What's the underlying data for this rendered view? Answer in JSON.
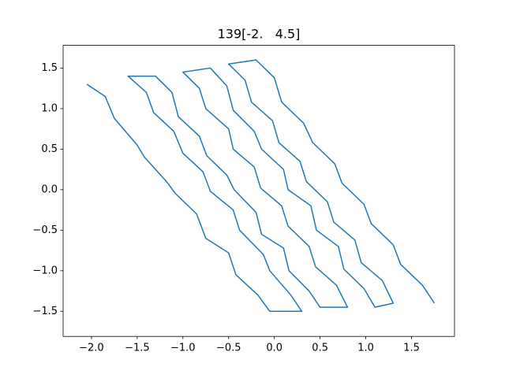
{
  "chart_data": {
    "type": "line",
    "title": "139[-2.   4.5]",
    "x": [
      -2.05,
      -1.85,
      -1.75,
      -1.5,
      -1.42,
      -1.18,
      -1.08,
      -0.85,
      -0.75,
      -0.5,
      -0.42,
      -0.18,
      -0.05,
      0.3,
      0.18,
      -0.05,
      -0.12,
      -0.38,
      -0.45,
      -0.7,
      -0.78,
      -1.0,
      -1.1,
      -1.32,
      -1.4,
      -1.6,
      -1.3,
      -1.12,
      -1.05,
      -0.82,
      -0.74,
      -0.52,
      -0.44,
      -0.2,
      -0.14,
      0.1,
      0.16,
      0.38,
      0.5,
      0.8,
      0.68,
      0.45,
      0.38,
      0.15,
      0.08,
      -0.15,
      -0.22,
      -0.45,
      -0.5,
      -0.75,
      -0.82,
      -1.0,
      -0.7,
      -0.52,
      -0.45,
      -0.22,
      -0.14,
      0.1,
      0.15,
      0.4,
      0.46,
      0.7,
      0.76,
      0.98,
      1.1,
      1.3,
      1.18,
      0.95,
      0.88,
      0.65,
      0.58,
      0.35,
      0.28,
      0.05,
      -0.02,
      -0.25,
      -0.32,
      -0.5,
      -0.2,
      0.0,
      0.08,
      0.32,
      0.42,
      0.66,
      0.74,
      0.98,
      1.06,
      1.3,
      1.38,
      1.62,
      1.75
    ],
    "series": [
      {
        "color": "#1f77b4",
        "values": [
          1.3,
          1.15,
          0.88,
          0.55,
          0.4,
          0.1,
          -0.05,
          -0.3,
          -0.6,
          -0.78,
          -1.05,
          -1.3,
          -1.5,
          -1.5,
          -1.3,
          -1.0,
          -0.8,
          -0.5,
          -0.25,
          -0.02,
          0.22,
          0.45,
          0.72,
          0.95,
          1.2,
          1.4,
          1.4,
          1.2,
          0.9,
          0.66,
          0.42,
          0.18,
          0.0,
          -0.28,
          -0.55,
          -0.72,
          -1.0,
          -1.25,
          -1.45,
          -1.45,
          -1.18,
          -0.95,
          -0.7,
          -0.45,
          -0.2,
          0.02,
          0.28,
          0.5,
          0.75,
          1.0,
          1.25,
          1.45,
          1.5,
          1.28,
          0.98,
          0.72,
          0.5,
          0.25,
          0.0,
          -0.2,
          -0.5,
          -0.7,
          -0.98,
          -1.22,
          -1.45,
          -1.4,
          -1.12,
          -0.9,
          -0.62,
          -0.4,
          -0.15,
          0.1,
          0.35,
          0.58,
          0.85,
          1.08,
          1.35,
          1.55,
          1.6,
          1.38,
          1.08,
          0.82,
          0.58,
          0.32,
          0.08,
          -0.18,
          -0.42,
          -0.68,
          -0.92,
          -1.18,
          -1.4
        ]
      }
    ],
    "xlim": [
      -2.31,
      1.97
    ],
    "ylim": [
      -1.81,
      1.78
    ],
    "xticks": [
      {
        "value": -2,
        "label": "−2.0"
      },
      {
        "value": -1.5,
        "label": "−1.5"
      },
      {
        "value": -1,
        "label": "−1.0"
      },
      {
        "value": -0.5,
        "label": "−0.5"
      },
      {
        "value": 0,
        "label": "0.0"
      },
      {
        "value": 0.5,
        "label": "0.5"
      },
      {
        "value": 1,
        "label": "1.0"
      },
      {
        "value": 1.5,
        "label": "1.5"
      }
    ],
    "yticks": [
      {
        "value": -1.5,
        "label": "−1.5"
      },
      {
        "value": -1,
        "label": "−1.0"
      },
      {
        "value": -0.5,
        "label": "−0.5"
      },
      {
        "value": 0,
        "label": "0.0"
      },
      {
        "value": 0.5,
        "label": "0.5"
      },
      {
        "value": 1,
        "label": "1.0"
      },
      {
        "value": 1.5,
        "label": "1.5"
      }
    ]
  }
}
